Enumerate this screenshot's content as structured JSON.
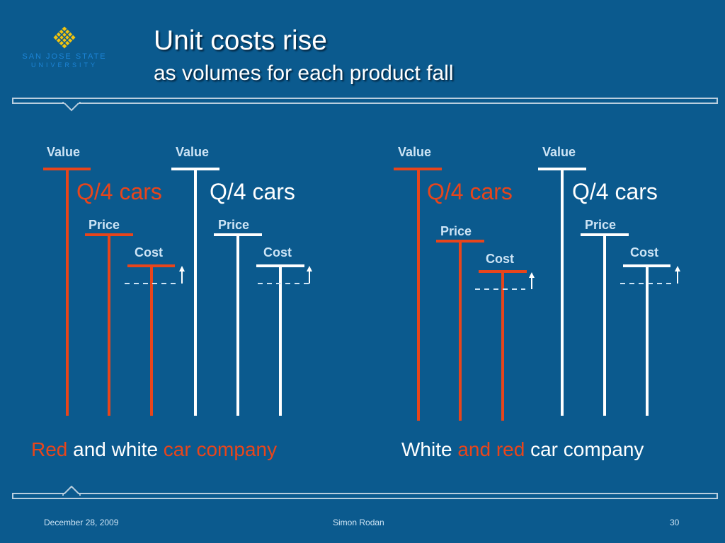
{
  "logo": {
    "line1": "SAN JOSE STATE",
    "line2": "UNIVERSITY",
    "colors": {
      "gold": "#f1c40f",
      "blue": "#1c84d6"
    }
  },
  "slide": {
    "title": "Unit costs rise",
    "subtitle": "as volumes for each product fall"
  },
  "left": {
    "value_label_1": "Value",
    "value_label_2": "Value",
    "qty_red": "Q/4 cars",
    "qty_white": "Q/4 cars",
    "price_label_1": "Price",
    "price_label_2": "Price",
    "cost_label_1": "Cost",
    "cost_label_2": "Cost",
    "caption": {
      "part1": "Red",
      "part2": " and white ",
      "part3": "car company"
    }
  },
  "right": {
    "value_label_1": "Value",
    "value_label_2": "Value",
    "qty_red": "Q/4 cars",
    "qty_white": "Q/4 cars",
    "price_label_1": "Price",
    "price_label_2": "Price",
    "cost_label_1": "Cost",
    "cost_label_2": "Cost",
    "caption": {
      "part1": "White",
      "part2": " and red ",
      "part3": "car company"
    }
  },
  "footer": {
    "date": "December 28, 2009",
    "author": "Simon Rodan",
    "page": "30"
  },
  "colors": {
    "background": "#0b5a8e",
    "red": "#e8451b",
    "white": "#ffffff",
    "label": "#cde4f5"
  }
}
